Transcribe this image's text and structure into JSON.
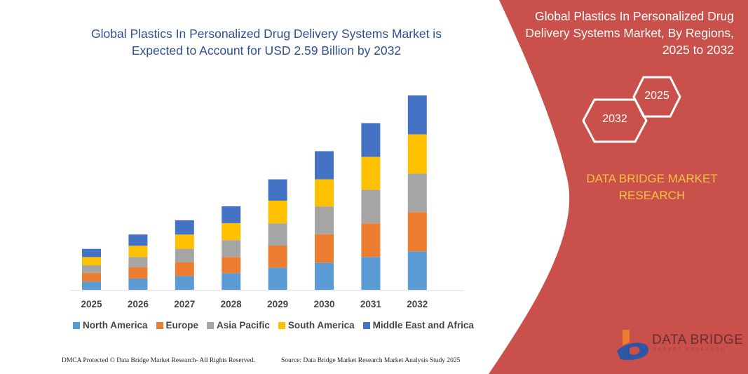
{
  "chart_data": {
    "type": "bar",
    "stacked": true,
    "title": "Global Plastics In Personalized Drug Delivery Systems Market is Expected to Account for USD 2.59 Billion by 2032",
    "categories": [
      "2025",
      "2026",
      "2027",
      "2028",
      "2029",
      "2030",
      "2031",
      "2032"
    ],
    "unit": "USD Billion",
    "ylim": [
      0,
      2.6
    ],
    "grid": false,
    "legend": "bottom",
    "series": [
      {
        "name": "North America",
        "color": "#5b9bd5",
        "values": [
          0.109,
          0.15,
          0.184,
          0.222,
          0.296,
          0.362,
          0.437,
          0.512
        ]
      },
      {
        "name": "Europe",
        "color": "#ed7d31",
        "values": [
          0.115,
          0.15,
          0.181,
          0.215,
          0.293,
          0.378,
          0.449,
          0.524
        ]
      },
      {
        "name": "Asia Pacific",
        "color": "#a5a5a5",
        "values": [
          0.103,
          0.137,
          0.181,
          0.225,
          0.296,
          0.371,
          0.446,
          0.512
        ]
      },
      {
        "name": "South America",
        "color": "#ffc000",
        "values": [
          0.109,
          0.15,
          0.19,
          0.225,
          0.303,
          0.362,
          0.44,
          0.524
        ]
      },
      {
        "name": "Middle East and Africa",
        "color": "#4472c4",
        "values": [
          0.109,
          0.15,
          0.19,
          0.225,
          0.284,
          0.374,
          0.449,
          0.518
        ]
      }
    ]
  },
  "panel": {
    "title": "Global Plastics In Personalized Drug Delivery Systems Market, By Regions, 2025 to 2032",
    "hex_start": "2025",
    "hex_end": "2032",
    "brand": "DATA BRIDGE MARKET RESEARCH",
    "color": "#c9504b"
  },
  "logo": {
    "name": "DATA BRIDGE",
    "tagline": "MARKET RESEARCH"
  },
  "footer": {
    "left": "DMCA Protected © Data Bridge Market Research- All Rights Reserved.",
    "right": "Source: Data Bridge Market Research Market Analysis Study 2025"
  }
}
